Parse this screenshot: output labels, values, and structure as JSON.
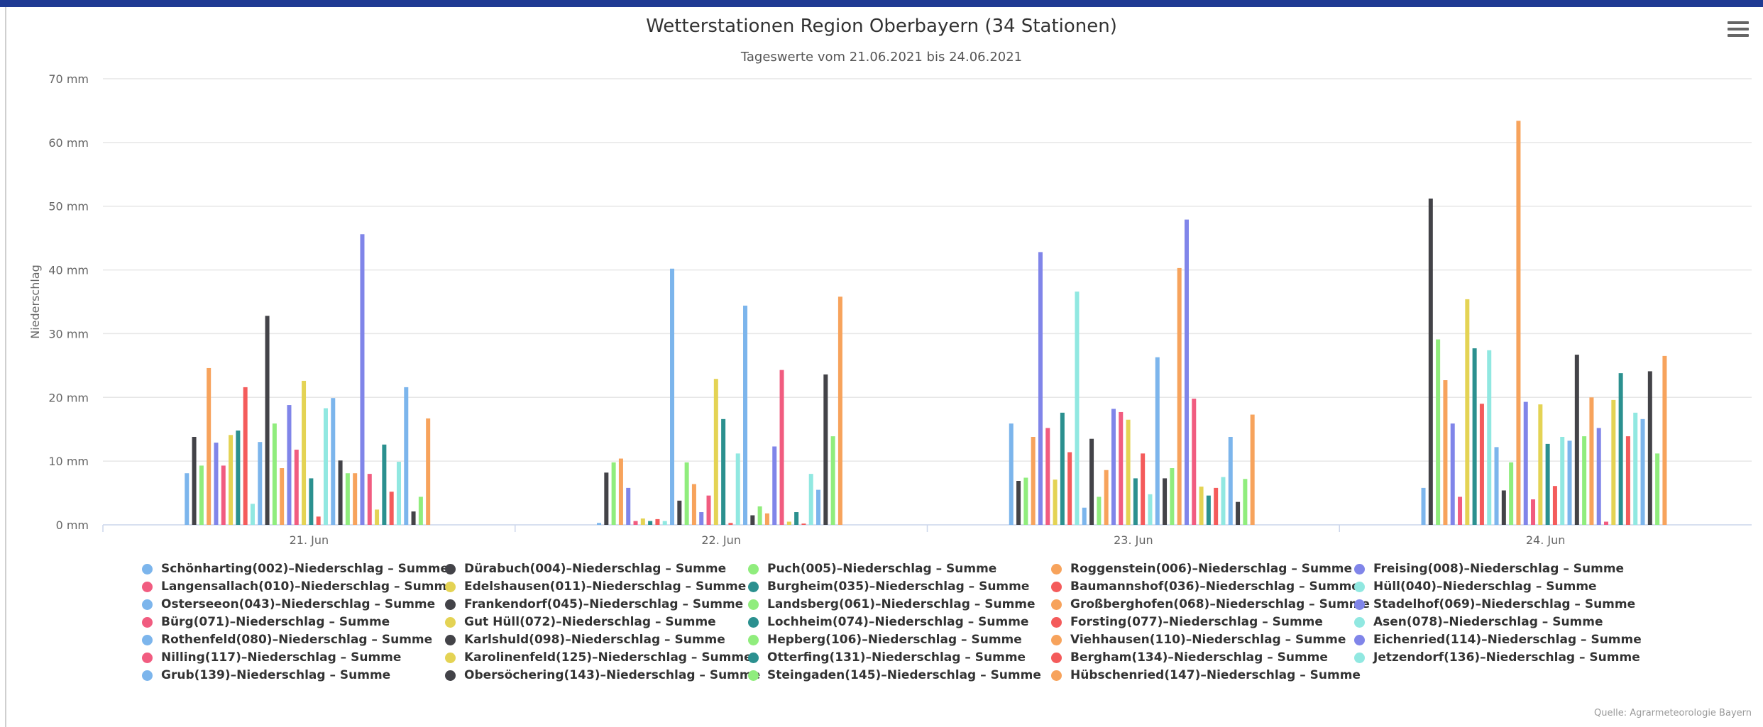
{
  "header": {
    "menu_icon": "hamburger-icon"
  },
  "credits": "Quelle: Agrarmeteorologie Bayern",
  "chart_data": {
    "type": "bar",
    "title": "Wetterstationen Region Oberbayern (34 Stationen)",
    "subtitle": "Tageswerte vom 21.06.2021 bis 24.06.2021",
    "xlabel": "",
    "ylabel": "Niederschlag",
    "ylim": [
      0,
      70
    ],
    "yticks": [
      0,
      10,
      20,
      30,
      40,
      50,
      60,
      70
    ],
    "ytick_labels": [
      "0 mm",
      "10 mm",
      "20 mm",
      "30 mm",
      "40 mm",
      "50 mm",
      "60 mm",
      "70 mm"
    ],
    "categories": [
      "21. Jun",
      "22. Jun",
      "23. Jun",
      "24. Jun"
    ],
    "grid": true,
    "legend_position": "bottom",
    "series": [
      {
        "name": "Schönharting(002)–Niederschlag – Summe",
        "color": "#7cb5ec",
        "values": [
          8.1,
          0.3,
          15.9,
          5.8
        ]
      },
      {
        "name": "Dürabuch(004)–Niederschlag – Summe",
        "color": "#434348",
        "values": [
          13.8,
          8.2,
          6.9,
          51.2
        ]
      },
      {
        "name": "Puch(005)–Niederschlag – Summe",
        "color": "#90ed7d",
        "values": [
          9.3,
          9.8,
          7.4,
          29.1
        ]
      },
      {
        "name": "Roggenstein(006)–Niederschlag – Summe",
        "color": "#f7a35c",
        "values": [
          24.6,
          10.4,
          13.8,
          22.7
        ]
      },
      {
        "name": "Freising(008)–Niederschlag – Summe",
        "color": "#8085e9",
        "values": [
          12.9,
          5.8,
          42.8,
          15.9
        ]
      },
      {
        "name": "Langensallach(010)–Niederschlag – Summe",
        "color": "#f15c80",
        "values": [
          9.3,
          0.6,
          15.2,
          4.4
        ]
      },
      {
        "name": "Edelshausen(011)–Niederschlag – Summe",
        "color": "#e4d354",
        "values": [
          14.1,
          1.0,
          7.1,
          35.4
        ]
      },
      {
        "name": "Burgheim(035)–Niederschlag – Summe",
        "color": "#2b908f",
        "values": [
          14.8,
          0.6,
          17.6,
          27.7
        ]
      },
      {
        "name": "Baumannshof(036)–Niederschlag – Summe",
        "color": "#f45b5b",
        "values": [
          21.6,
          0.9,
          11.4,
          19.0
        ]
      },
      {
        "name": "Hüll(040)–Niederschlag – Summe",
        "color": "#91e8e1",
        "values": [
          3.3,
          0.6,
          36.6,
          27.4
        ]
      },
      {
        "name": "Osterseeon(043)–Niederschlag – Summe",
        "color": "#7cb5ec",
        "values": [
          13.0,
          40.2,
          2.7,
          12.2
        ]
      },
      {
        "name": "Frankendorf(045)–Niederschlag – Summe",
        "color": "#434348",
        "values": [
          32.8,
          3.8,
          13.5,
          5.4
        ]
      },
      {
        "name": "Landsberg(061)–Niederschlag – Summe",
        "color": "#90ed7d",
        "values": [
          15.9,
          9.8,
          4.4,
          9.8
        ]
      },
      {
        "name": "Großberghofen(068)–Niederschlag – Summe",
        "color": "#f7a35c",
        "values": [
          8.9,
          6.4,
          8.6,
          63.4
        ]
      },
      {
        "name": "Stadelhof(069)–Niederschlag – Summe",
        "color": "#8085e9",
        "values": [
          18.8,
          2.0,
          18.2,
          19.3
        ]
      },
      {
        "name": "Bürg(071)–Niederschlag – Summe",
        "color": "#f15c80",
        "values": [
          11.8,
          4.6,
          17.7,
          4.0
        ]
      },
      {
        "name": "Gut Hüll(072)–Niederschlag – Summe",
        "color": "#e4d354",
        "values": [
          22.6,
          22.9,
          16.5,
          18.9
        ]
      },
      {
        "name": "Lochheim(074)–Niederschlag – Summe",
        "color": "#2b908f",
        "values": [
          7.3,
          16.6,
          7.3,
          12.7
        ]
      },
      {
        "name": "Forsting(077)–Niederschlag – Summe",
        "color": "#f45b5b",
        "values": [
          1.3,
          0.3,
          11.2,
          6.1
        ]
      },
      {
        "name": "Asen(078)–Niederschlag – Summe",
        "color": "#91e8e1",
        "values": [
          18.3,
          11.2,
          4.8,
          13.8
        ]
      },
      {
        "name": "Rothenfeld(080)–Niederschlag – Summe",
        "color": "#7cb5ec",
        "values": [
          19.9,
          34.4,
          26.3,
          13.2
        ]
      },
      {
        "name": "Karlshuld(098)–Niederschlag – Summe",
        "color": "#434348",
        "values": [
          10.1,
          1.5,
          7.3,
          26.7
        ]
      },
      {
        "name": "Hepberg(106)–Niederschlag – Summe",
        "color": "#90ed7d",
        "values": [
          8.1,
          2.9,
          8.9,
          13.9
        ]
      },
      {
        "name": "Viehhausen(110)–Niederschlag – Summe",
        "color": "#f7a35c",
        "values": [
          8.1,
          1.8,
          40.3,
          20.0
        ]
      },
      {
        "name": "Eichenried(114)–Niederschlag – Summe",
        "color": "#8085e9",
        "values": [
          45.6,
          12.3,
          47.9,
          15.2
        ]
      },
      {
        "name": "Nilling(117)–Niederschlag – Summe",
        "color": "#f15c80",
        "values": [
          8.0,
          24.3,
          19.8,
          0.5
        ]
      },
      {
        "name": "Karolinenfeld(125)–Niederschlag – Summe",
        "color": "#e4d354",
        "values": [
          2.4,
          0.5,
          6.0,
          19.6
        ]
      },
      {
        "name": "Otterfing(131)–Niederschlag – Summe",
        "color": "#2b908f",
        "values": [
          12.6,
          2.0,
          4.6,
          23.8
        ]
      },
      {
        "name": "Bergham(134)–Niederschlag – Summe",
        "color": "#f45b5b",
        "values": [
          5.2,
          0.2,
          5.8,
          13.9
        ]
      },
      {
        "name": "Jetzendorf(136)–Niederschlag – Summe",
        "color": "#91e8e1",
        "values": [
          9.9,
          8.0,
          7.5,
          17.6
        ]
      },
      {
        "name": "Grub(139)–Niederschlag – Summe",
        "color": "#7cb5ec",
        "values": [
          21.6,
          5.5,
          13.8,
          16.6
        ]
      },
      {
        "name": "Obersöchering(143)–Niederschlag – Summe",
        "color": "#434348",
        "values": [
          2.1,
          23.6,
          3.6,
          24.1
        ]
      },
      {
        "name": "Steingaden(145)–Niederschlag – Summe",
        "color": "#90ed7d",
        "values": [
          4.4,
          13.9,
          7.2,
          11.2
        ]
      },
      {
        "name": "Hübschenried(147)–Niederschlag – Summe",
        "color": "#f7a35c",
        "values": [
          16.7,
          35.8,
          17.3,
          26.5
        ]
      }
    ]
  }
}
